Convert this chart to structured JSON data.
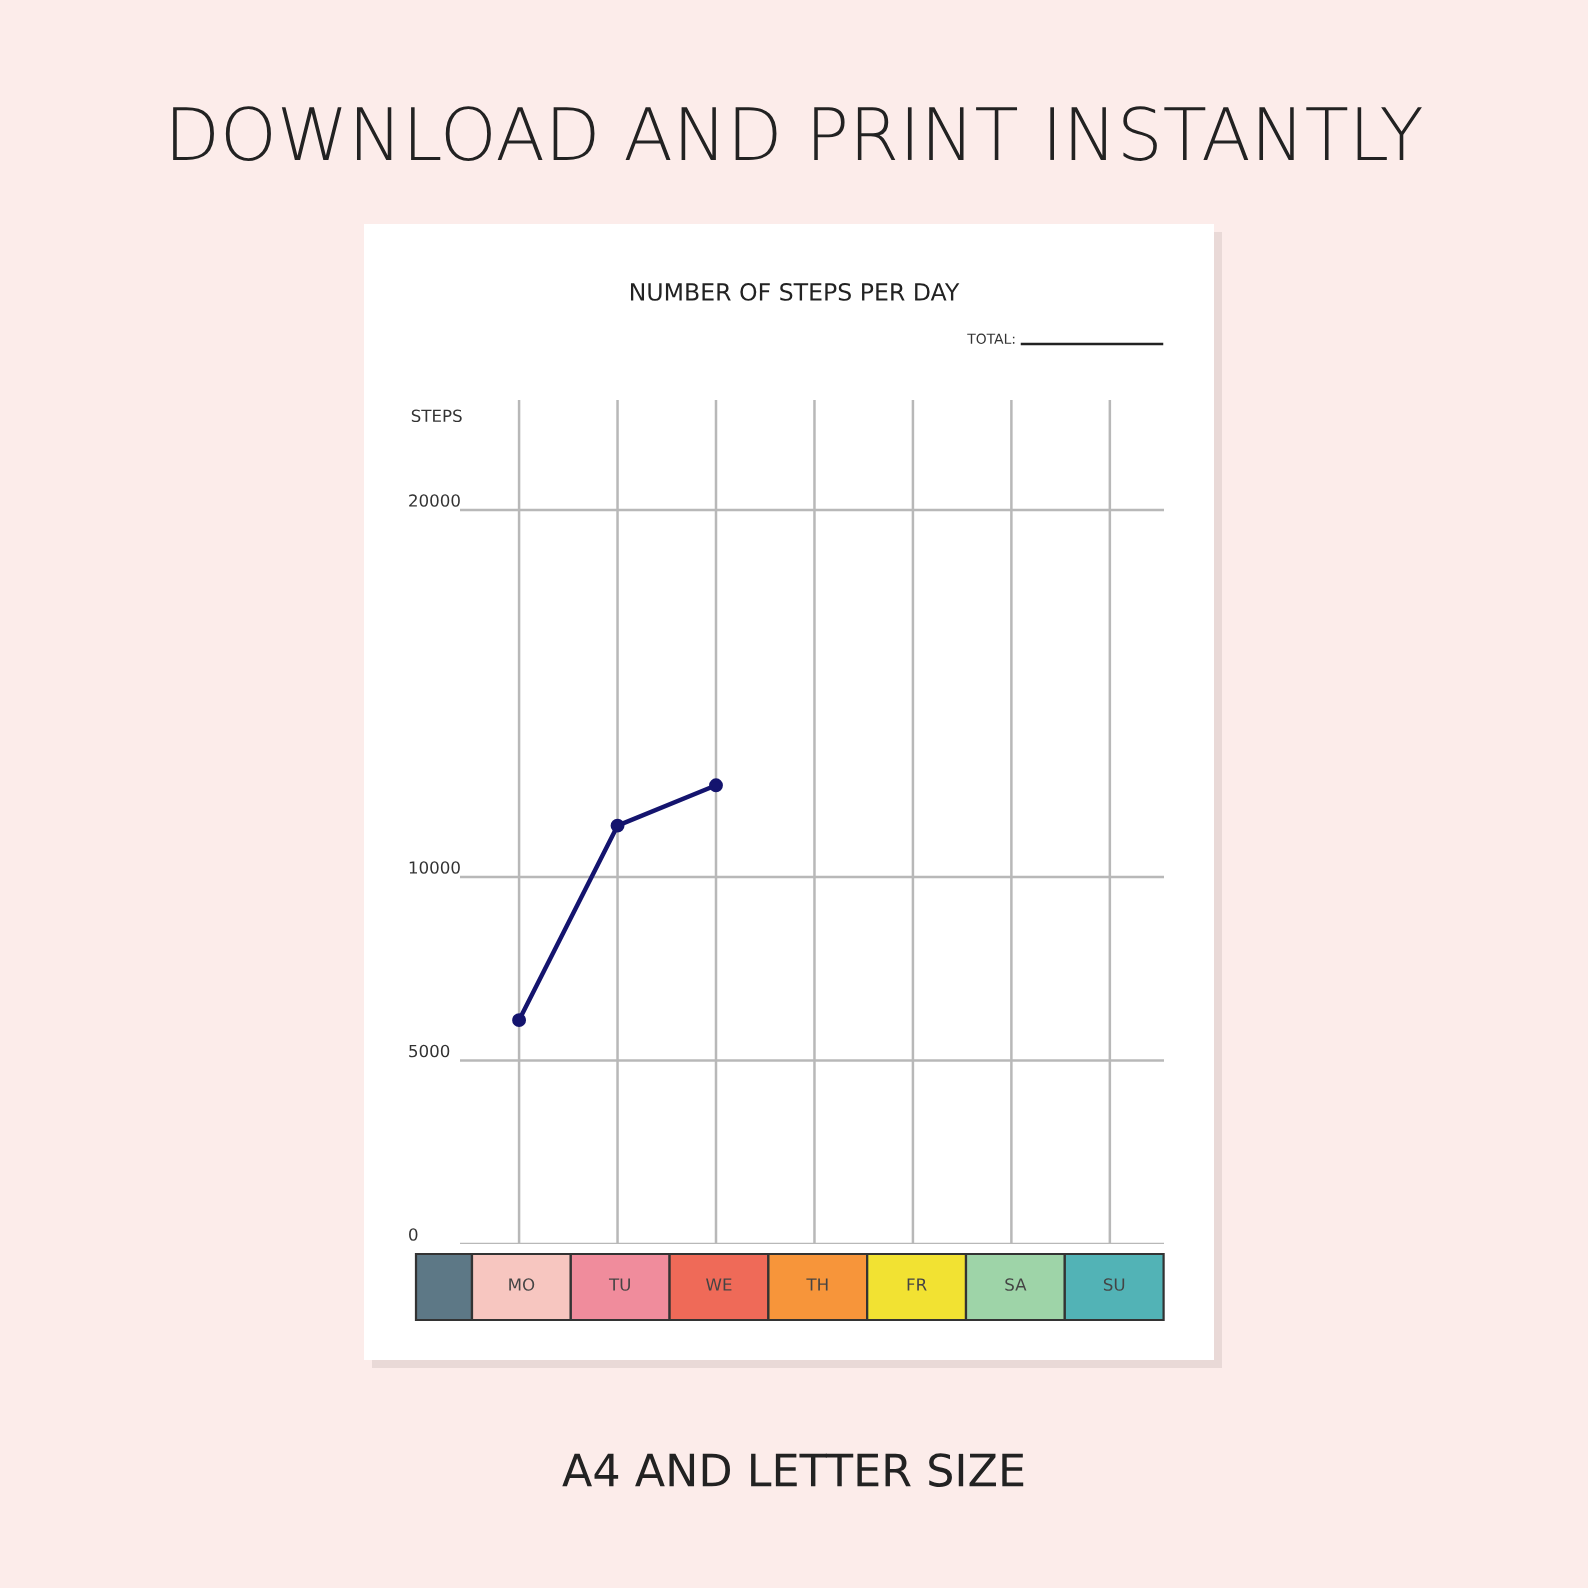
{
  "chart_data": {
    "type": "line",
    "title": "NUMBER OF STEPS PER DAY",
    "ylabel": "STEPS",
    "annotations": [
      "DOWNLOAD AND PRINT INSTANTLY",
      "TOTAL:",
      "A4 AND LETTER SIZE"
    ],
    "categories": [
      "MO",
      "TU",
      "WE",
      "TH",
      "FR",
      "SA",
      "SU"
    ],
    "series": [
      {
        "color": "#14146e",
        "values": [
          6100,
          11400,
          12500,
          null,
          null,
          null,
          null
        ]
      }
    ],
    "ylim": [
      0,
      23000
    ],
    "yticks": [
      0,
      5000,
      10000,
      20000
    ],
    "grid": true,
    "marker": "circle",
    "line_style": "solid"
  }
}
